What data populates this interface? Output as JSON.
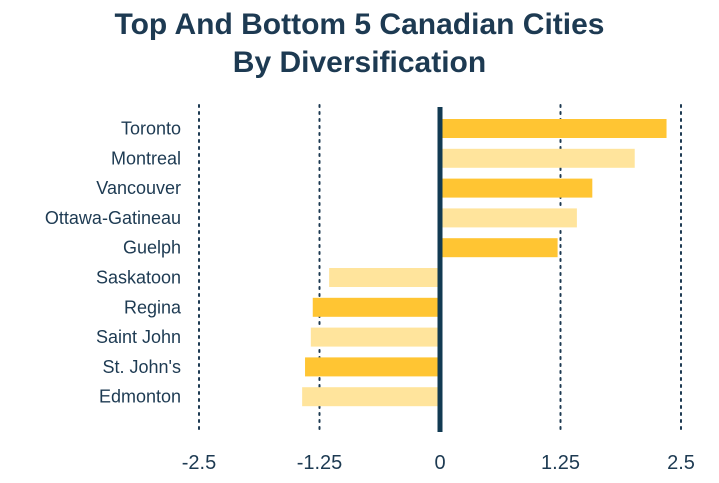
{
  "chart_data": {
    "type": "bar",
    "orientation": "horizontal",
    "title_lines": [
      "Top And Bottom 5 Canadian Cities",
      "By Diversification"
    ],
    "categories": [
      "Toronto",
      "Montreal",
      "Vancouver",
      "Ottawa-Gatineau",
      "Guelph",
      "Saskatoon",
      "Regina",
      "Saint John",
      "St. John's",
      "Edmonton"
    ],
    "values": [
      2.35,
      2.02,
      1.58,
      1.42,
      1.22,
      -1.15,
      -1.32,
      -1.34,
      -1.4,
      -1.43
    ],
    "xlim": [
      -2.5,
      2.5
    ],
    "ticks": [
      -2.5,
      -1.25,
      0,
      1.25,
      2.5
    ],
    "tick_labels": [
      "-2.5",
      "-1.25",
      "0",
      "1.25",
      "2.5"
    ],
    "gridlines": "dotted vertical at ticks",
    "colors": {
      "dark": "#ffc533",
      "light": "#ffe49c",
      "zero_line": "#123a52",
      "grid": "#1d3a52",
      "text": "#1d3a52"
    },
    "bar_shades": [
      "dark",
      "light",
      "dark",
      "light",
      "dark",
      "light",
      "dark",
      "light",
      "dark",
      "light"
    ]
  }
}
